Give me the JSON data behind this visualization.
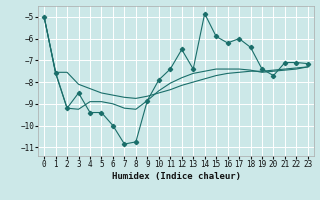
{
  "xlabel": "Humidex (Indice chaleur)",
  "background_color": "#cce8e8",
  "grid_color": "#ffffff",
  "line_color": "#1a6e6a",
  "xlim": [
    -0.5,
    23.5
  ],
  "ylim": [
    -11.4,
    -4.5
  ],
  "yticks": [
    -11,
    -10,
    -9,
    -8,
    -7,
    -6,
    -5
  ],
  "xticks": [
    0,
    1,
    2,
    3,
    4,
    5,
    6,
    7,
    8,
    9,
    10,
    11,
    12,
    13,
    14,
    15,
    16,
    17,
    18,
    19,
    20,
    21,
    22,
    23
  ],
  "series_main": {
    "x": [
      0,
      1,
      2,
      3,
      4,
      5,
      6,
      7,
      8,
      9,
      10,
      11,
      12,
      13,
      14,
      15,
      16,
      17,
      18,
      19,
      20,
      21,
      22,
      23
    ],
    "y": [
      -5.0,
      -7.6,
      -9.2,
      -8.5,
      -9.4,
      -9.4,
      -10.0,
      -10.85,
      -10.75,
      -8.85,
      -7.9,
      -7.4,
      -6.5,
      -7.4,
      -4.85,
      -5.9,
      -6.2,
      -6.0,
      -6.4,
      -7.4,
      -7.7,
      -7.1,
      -7.1,
      -7.15
    ]
  },
  "series_smooth1": {
    "x": [
      0,
      1,
      2,
      3,
      4,
      5,
      6,
      7,
      8,
      9,
      10,
      11,
      12,
      13,
      14,
      15,
      16,
      17,
      18,
      19,
      20,
      21,
      22,
      23
    ],
    "y": [
      -5.0,
      -7.55,
      -7.55,
      -8.1,
      -8.3,
      -8.5,
      -8.6,
      -8.7,
      -8.75,
      -8.65,
      -8.5,
      -8.35,
      -8.15,
      -8.0,
      -7.85,
      -7.7,
      -7.6,
      -7.55,
      -7.5,
      -7.5,
      -7.45,
      -7.4,
      -7.35,
      -7.3
    ]
  },
  "series_smooth2": {
    "x": [
      0,
      1,
      2,
      3,
      4,
      5,
      6,
      7,
      8,
      9,
      10,
      11,
      12,
      13,
      14,
      15,
      16,
      17,
      18,
      19,
      20,
      21,
      22,
      23
    ],
    "y": [
      -5.0,
      -7.55,
      -9.2,
      -9.25,
      -8.9,
      -8.9,
      -9.0,
      -9.2,
      -9.25,
      -8.85,
      -8.4,
      -8.05,
      -7.8,
      -7.6,
      -7.5,
      -7.4,
      -7.4,
      -7.4,
      -7.45,
      -7.55,
      -7.5,
      -7.45,
      -7.4,
      -7.3
    ]
  }
}
